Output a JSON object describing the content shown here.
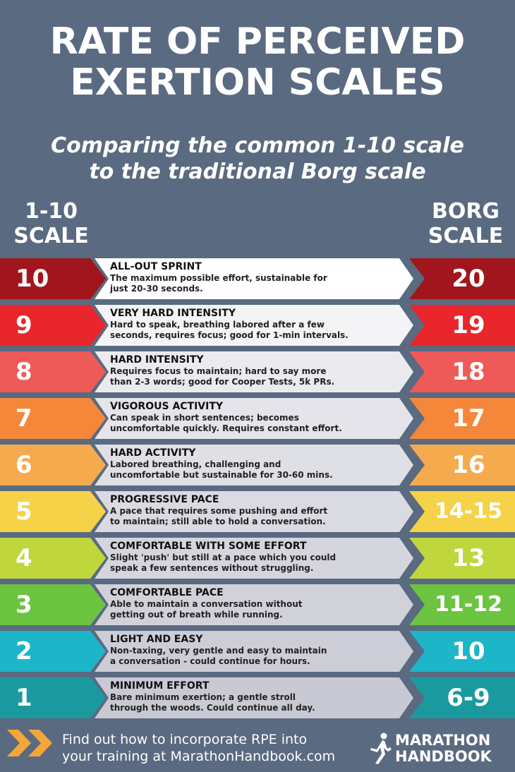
{
  "title_line1": "RATE OF PERCEIVED",
  "title_line2": "EXERTION SCALES",
  "subtitle_line1": "Comparing the common 1-10 scale",
  "subtitle_line2": "to the traditional Borg scale",
  "left_header_line1": "1-10",
  "left_header_line2": "SCALE",
  "right_header_line1": "BORG",
  "right_header_line2": "SCALE",
  "rows": [
    {
      "level": "10",
      "borg": "20",
      "heading": "ALL-OUT SPRINT",
      "line1": "The maximum possible effort, sustainable for",
      "line2": "just 20-30 seconds.",
      "color": "#a0161c",
      "panel": "#ffffff"
    },
    {
      "level": "9",
      "borg": "19",
      "heading": "VERY HARD INTENSITY",
      "line1": "Hard to speak, breathing labored after a few",
      "line2": "seconds, requires focus; good for 1-min intervals.",
      "color": "#e8262b",
      "panel": "#f4f4f6"
    },
    {
      "level": "8",
      "borg": "18",
      "heading": "HARD INTENSITY",
      "line1": "Requires focus to maintain; hard to say more",
      "line2": "than 2-3 words; good for Cooper Tests, 5k PRs.",
      "color": "#ee5a58",
      "panel": "#ebebef"
    },
    {
      "level": "7",
      "borg": "17",
      "heading": "VIGOROUS ACTIVITY",
      "line1": "Can speak in short sentences; becomes",
      "line2": "uncomfortable quickly. Requires constant effort.",
      "color": "#f5873a",
      "panel": "#e4e4ea"
    },
    {
      "level": "6",
      "borg": "16",
      "heading": "HARD ACTIVITY",
      "line1": "Labored breathing, challenging and",
      "line2": "uncomfortable but sustainable for 30-60 mins.",
      "color": "#f6aa4e",
      "panel": "#dfdfe6"
    },
    {
      "level": "5",
      "borg": "14-15",
      "heading": "PROGRESSIVE PACE",
      "line1": "A pace that requires some pushing and effort",
      "line2": "to maintain; still able to hold a conversation.",
      "color": "#f6d248",
      "panel": "#dadae2"
    },
    {
      "level": "4",
      "borg": "13",
      "heading": "COMFORTABLE WITH SOME EFFORT",
      "line1": "Slight 'push' but still at a pace which you could",
      "line2": "speak a few sentences without struggling.",
      "color": "#bfd63d",
      "panel": "#d5d5de"
    },
    {
      "level": "3",
      "borg": "11-12",
      "heading": "COMFORTABLE PACE",
      "line1": "Able to maintain a conversation without",
      "line2": "getting out of breath while running.",
      "color": "#6cc440",
      "panel": "#d1d1da"
    },
    {
      "level": "2",
      "borg": "10",
      "heading": "LIGHT AND EASY",
      "line1": "Non-taxing, very gentle and easy to maintain",
      "line2": "a conversation - could continue for hours.",
      "color": "#1db6c9",
      "panel": "#cdcdd7"
    },
    {
      "level": "1",
      "borg": "6-9",
      "heading": "MINIMUM EFFORT",
      "line1": "Bare minimum exertion; a gentle stroll",
      "line2": "through the woods. Could continue all day.",
      "color": "#1a9a9e",
      "panel": "#c9c9d4"
    }
  ],
  "footer_line1": "Find out how to incorporate RPE into",
  "footer_line2": "your training at MarathonHandbook.com",
  "logo_line1": "MARATHON",
  "logo_line2": "HANDBOOK",
  "accent_arrow_color": "#f5a63a"
}
